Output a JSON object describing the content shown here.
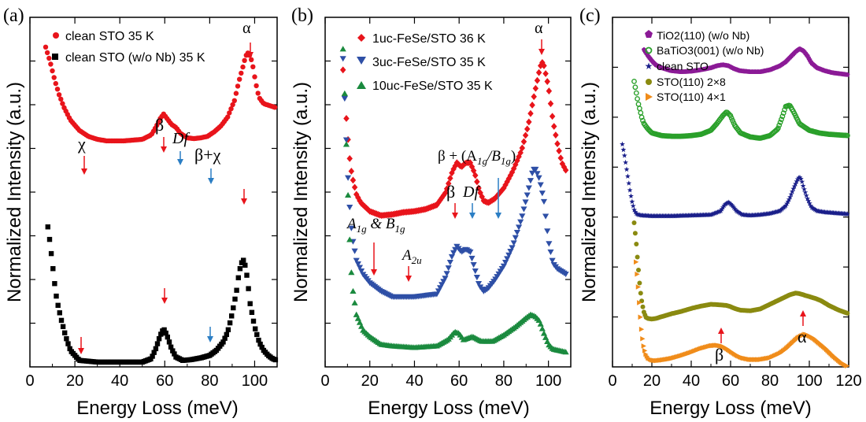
{
  "chart_data": [
    {
      "panel": "(a)",
      "type": "scatter",
      "xlabel": "Energy Loss (meV)",
      "ylabel": "Normalized Intensity (a.u.)",
      "xlim": [
        0,
        110
      ],
      "xticks": [
        "0",
        "20",
        "40",
        "60",
        "80",
        "100"
      ],
      "series": [
        {
          "name": "clean STO 35 K",
          "color": "#e8141b",
          "marker": "circle",
          "x": [
            7,
            9,
            11,
            13,
            15,
            18,
            22,
            26,
            30,
            34,
            38,
            42,
            46,
            50,
            54,
            56,
            58,
            59.5,
            61,
            63,
            65,
            67,
            70,
            73,
            76,
            79,
            82,
            85,
            88,
            91,
            93,
            95,
            96,
            97,
            98,
            99,
            100,
            101,
            102,
            104,
            106,
            108,
            110
          ],
          "y": [
            98,
            88,
            76,
            66,
            58,
            49,
            42,
            38,
            36,
            35,
            35,
            35,
            35.5,
            36,
            39,
            44,
            50,
            53,
            50,
            46,
            44,
            40,
            37,
            36.5,
            37,
            38,
            41,
            45,
            51,
            62,
            75,
            86,
            92,
            94,
            92,
            87,
            78,
            70,
            64,
            60,
            59,
            58,
            57
          ]
        },
        {
          "name": "clean STO (w/o Nb) 35 K",
          "color": "#000000",
          "marker": "square",
          "x": [
            8,
            9,
            10,
            11,
            12,
            14,
            16,
            18,
            22,
            30,
            40,
            50,
            54,
            56,
            58,
            59.5,
            61,
            63,
            65,
            68,
            72,
            76,
            80,
            83,
            86,
            88,
            90,
            92,
            93,
            94,
            95,
            96,
            97,
            98,
            100,
            102,
            104,
            106,
            108,
            110
          ],
          "y": [
            82,
            72,
            60,
            48,
            38,
            26,
            16,
            8,
            2,
            1,
            1,
            1,
            3,
            9,
            17,
            21,
            17,
            9,
            4,
            2,
            2.5,
            3.5,
            5,
            8,
            13,
            19,
            30,
            44,
            54,
            60,
            62,
            58,
            48,
            36,
            22,
            13,
            8,
            5,
            3,
            2
          ]
        }
      ],
      "annotations": [
        {
          "text": "α",
          "x": 97.5
        },
        {
          "text": "χ",
          "x": 22
        },
        {
          "text": "β",
          "x": 59
        },
        {
          "text": "Df",
          "x": 65
        },
        {
          "text": "β+χ",
          "x": 80
        }
      ]
    },
    {
      "panel": "(b)",
      "type": "scatter",
      "xlabel": "Energy Loss (meV)",
      "ylabel": "Normalized Intensity (a.u.)",
      "xlim": [
        0,
        110
      ],
      "xticks": [
        "0",
        "20",
        "40",
        "60",
        "80",
        "100"
      ],
      "series": [
        {
          "name": "1uc-FeSe/STO 36 K",
          "color": "#e8141b",
          "marker": "diamond",
          "x": [
            8,
            9,
            10,
            11,
            12,
            14,
            16,
            20,
            25,
            30,
            35,
            40,
            45,
            50,
            54,
            57,
            59,
            61,
            63,
            65,
            67,
            69,
            71,
            73,
            76,
            80,
            84,
            88,
            91,
            94,
            96,
            97,
            98,
            100,
            102,
            104,
            106,
            108
          ],
          "y": [
            90,
            74,
            60,
            48,
            40,
            31,
            27,
            23,
            21,
            21.5,
            22.5,
            23,
            24,
            26,
            32,
            42,
            46,
            44,
            46,
            46,
            41,
            33,
            28,
            27,
            29,
            34,
            42,
            52,
            64,
            80,
            90,
            94,
            92,
            82,
            66,
            55,
            46,
            42
          ]
        },
        {
          "name": "3uc-FeSe/STO 35 K",
          "color": "#2e4fa6",
          "marker": "triangle-down",
          "x": [
            8,
            9,
            10,
            11,
            12,
            14,
            17,
            20,
            25,
            30,
            40,
            50,
            54,
            57,
            59,
            61,
            63,
            65,
            67,
            69,
            71,
            73,
            76,
            80,
            84,
            88,
            91,
            93,
            94,
            96,
            98,
            100,
            102,
            104,
            106,
            108
          ],
          "y": [
            97,
            78,
            58,
            44,
            34,
            25,
            20,
            17,
            14,
            12,
            12,
            13,
            19,
            27,
            30,
            28,
            29,
            28,
            22,
            16,
            14,
            15,
            18,
            23,
            30,
            40,
            50,
            57,
            58,
            54,
            46,
            32,
            24,
            22,
            21,
            20
          ]
        },
        {
          "name": "10uc-FeSe/STO 35 K",
          "color": "#1a8a3e",
          "marker": "triangle-up",
          "x": [
            8,
            9,
            10,
            11,
            12,
            14,
            17,
            20,
            25,
            30,
            40,
            50,
            55,
            58,
            60,
            62,
            66,
            70,
            75,
            80,
            85,
            90,
            92,
            94,
            96,
            98,
            100,
            102,
            105,
            108
          ],
          "y": [
            99,
            80,
            57,
            38,
            24,
            14,
            9,
            7,
            4.5,
            4,
            3.5,
            4,
            6,
            8.5,
            8,
            6,
            7,
            5.5,
            5.5,
            7.5,
            10,
            13,
            14,
            13.5,
            12,
            8,
            4.5,
            3,
            2.5,
            2
          ]
        }
      ],
      "annotations": [
        {
          "text": "α",
          "x": 97
        },
        {
          "text": "β",
          "x": 58
        },
        {
          "text": "Df",
          "x": 65
        },
        {
          "text": "β + (A1g/B1g)",
          "x": 78
        },
        {
          "text": "A1g & B1g",
          "x": 22
        },
        {
          "text": "A2u",
          "x": 37
        }
      ]
    },
    {
      "panel": "(c)",
      "type": "scatter",
      "xlabel": "Energy Loss (meV)",
      "ylabel": "Normalized Intensity (a.u.)",
      "xlim": [
        0,
        120
      ],
      "xticks": [
        "0",
        "20",
        "40",
        "60",
        "80",
        "100",
        "120"
      ],
      "series": [
        {
          "name": "TiO2(110) (w/o Nb)",
          "color": "#8b1a96",
          "marker": "pentagon",
          "x": [
            16,
            18,
            20,
            22,
            25,
            30,
            35,
            40,
            45,
            50,
            53,
            56,
            59,
            62,
            65,
            70,
            75,
            80,
            85,
            88,
            91,
            93,
            95,
            97,
            99,
            101,
            104,
            108,
            112,
            116,
            120
          ],
          "y": [
            96,
            90,
            85,
            81,
            78,
            75,
            74,
            74.5,
            76,
            78,
            80,
            81,
            80,
            77,
            75,
            74,
            74,
            76,
            80,
            84,
            90,
            94,
            97,
            95,
            90,
            83,
            78,
            75,
            73,
            72,
            71
          ]
        },
        {
          "name": "BaTiO3(001) (w/o Nb)",
          "color": "#2aa02a",
          "marker": "ring",
          "x": [
            11,
            12,
            13,
            14,
            15,
            16,
            18,
            20,
            25,
            30,
            35,
            40,
            45,
            50,
            53,
            56,
            58,
            60,
            62,
            65,
            70,
            75,
            80,
            84,
            86,
            88,
            90,
            92,
            95,
            100,
            105,
            110,
            115,
            120
          ],
          "y": [
            98,
            90,
            82,
            76,
            70,
            66,
            62,
            59,
            57,
            56.5,
            56.5,
            57,
            58,
            61,
            66,
            72,
            75,
            72,
            65,
            59,
            56,
            55,
            57,
            62,
            70,
            79,
            80,
            75,
            66,
            61,
            59,
            58,
            57.5,
            57
          ]
        },
        {
          "name": "clean STO",
          "color": "#1a1f8a",
          "marker": "star",
          "x": [
            5,
            6,
            7,
            8,
            9,
            10,
            11,
            12,
            13,
            15,
            20,
            30,
            40,
            50,
            55,
            57,
            59,
            61,
            63,
            66,
            70,
            75,
            80,
            85,
            88,
            90,
            92,
            94,
            95,
            96,
            97,
            99,
            101,
            104,
            108,
            112,
            116,
            120
          ],
          "y": [
            98,
            90,
            80,
            70,
            60,
            52,
            46,
            43,
            42,
            41.5,
            41,
            41,
            41.5,
            42,
            45,
            50,
            52,
            49,
            45,
            42,
            41.5,
            42,
            43,
            45,
            49,
            55,
            63,
            70,
            72,
            70,
            64,
            55,
            48,
            45,
            44,
            43.5,
            43,
            42.5
          ]
        },
        {
          "name": "STO(110) 2×8",
          "color": "#8a8a10",
          "marker": "circle",
          "x": [
            11,
            12,
            13,
            14,
            15,
            16,
            17,
            18,
            20,
            22,
            25,
            30,
            35,
            40,
            45,
            50,
            55,
            58,
            60,
            62,
            65,
            70,
            75,
            80,
            85,
            90,
            93,
            95,
            97,
            100,
            103,
            106,
            110,
            115,
            120
          ],
          "y": [
            98,
            82,
            62,
            42,
            30,
            22,
            18,
            17,
            16.5,
            17,
            18.5,
            21,
            23,
            25.5,
            27.5,
            29,
            28.5,
            28,
            27,
            25.5,
            24,
            23.5,
            25,
            29,
            33,
            37,
            38.5,
            38,
            37,
            35.5,
            34,
            32,
            28,
            24,
            21
          ]
        },
        {
          "name": "STO(110) 4×1",
          "color": "#f08c1a",
          "marker": "triangle-right",
          "x": [
            12,
            13,
            14,
            15,
            16,
            17,
            18,
            20,
            22,
            25,
            30,
            35,
            40,
            45,
            50,
            53,
            56,
            58,
            60,
            63,
            66,
            70,
            75,
            80,
            85,
            88,
            91,
            94,
            96,
            98,
            100,
            102,
            104,
            108,
            112,
            116,
            120
          ],
          "y": [
            98,
            78,
            52,
            32,
            20,
            14,
            11,
            9,
            8.5,
            9,
            10.5,
            13,
            16,
            19.5,
            22,
            22.5,
            21.5,
            19.5,
            17,
            13.5,
            11,
            9.5,
            9.5,
            11,
            15,
            19,
            24,
            29,
            31,
            32.5,
            31,
            29,
            26,
            20,
            13,
            7,
            3
          ]
        }
      ],
      "annotations": [
        {
          "text": "β",
          "x": 54
        },
        {
          "text": "α",
          "x": 97
        }
      ]
    }
  ],
  "panels": {
    "a": {
      "label": "(a)",
      "xlabel": "Energy Loss (meV)",
      "ylabel": "Normalized Intensity (a.u.)",
      "legend": [
        "clean STO 35 K",
        "clean STO (w/o Nb) 35 K"
      ],
      "ann": {
        "alpha": "α",
        "chi": "χ",
        "beta": "β",
        "df": "Df",
        "betachi": "β+χ"
      }
    },
    "b": {
      "label": "(b)",
      "xlabel": "Energy Loss (meV)",
      "ylabel": "Normalized Intensity (a.u.)",
      "legend": [
        "1uc-FeSe/STO 36 K",
        "3uc-FeSe/STO 35 K",
        "10uc-FeSe/STO 35 K"
      ],
      "ann": {
        "alpha": "α",
        "beta": "β",
        "df": "Df",
        "betaA": "β + (A",
        "betaA_sub1": "1g",
        "betaA_mid": "/B",
        "betaA_sub2": "1g",
        "betaA_end": ")",
        "a1g": "A",
        "a1g_sub": "1g",
        "a1g_mid": " & B",
        "b1g_sub": "1g",
        "a2u": "A",
        "a2u_sub": "2u"
      }
    },
    "c": {
      "label": "(c)",
      "xlabel": "Energy Loss (meV)",
      "ylabel": "Normalized Intensity (a.u.)",
      "legend": [
        "TiO2(110) (w/o Nb)",
        "BaTiO3(001) (w/o Nb)",
        "clean STO",
        "STO(110) 2×8",
        "STO(110) 4×1"
      ],
      "ann": {
        "beta": "β",
        "alpha": "α"
      }
    }
  },
  "colors": {
    "red_arrow": "#e8141b",
    "blue_arrow": "#2b7ec4"
  }
}
